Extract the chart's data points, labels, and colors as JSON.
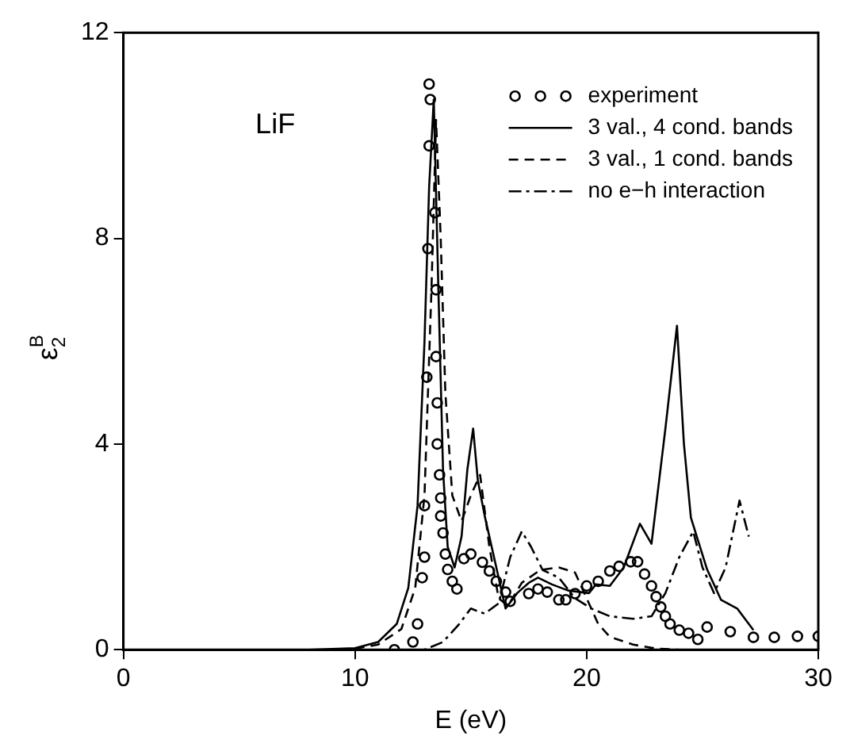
{
  "chart_data": {
    "type": "line",
    "xlabel": "E (eV)",
    "ylabel": "ε$_{2}$$^{B}$",
    "annotations": [
      "LiF"
    ],
    "xlim": [
      0,
      30
    ],
    "xticks": [
      0,
      10,
      20,
      30
    ],
    "ylim": [
      0,
      12
    ],
    "yticks": [
      0,
      4,
      8,
      12
    ],
    "grid": false,
    "legend": "top right",
    "series": [
      {
        "name": "experiment",
        "type": "scatter",
        "marker": "circle",
        "color": "#000000",
        "x": [
          11.7,
          12.5,
          12.7,
          12.9,
          13.0,
          13.0,
          13.1,
          13.15,
          13.2,
          13.25,
          13.2,
          13.45,
          13.5,
          13.5,
          13.55,
          13.55,
          13.65,
          13.7,
          13.7,
          13.8,
          13.9,
          14.0,
          14.2,
          14.4,
          14.7,
          15.0,
          15.5,
          15.8,
          16.1,
          16.5,
          16.7,
          17.5,
          17.9,
          18.3,
          18.8,
          19.1,
          19.5,
          20.0,
          20.5,
          21.0,
          21.4,
          21.9,
          22.2,
          22.5,
          22.8,
          23.0,
          23.2,
          23.4,
          23.6,
          24.0,
          24.4,
          24.8,
          25.2,
          26.2,
          27.2,
          28.1,
          29.1,
          30.0
        ],
        "values": [
          0.0,
          0.15,
          0.5,
          1.4,
          1.8,
          2.8,
          5.3,
          7.8,
          9.8,
          10.7,
          11.0,
          8.5,
          7.0,
          5.7,
          4.8,
          4.0,
          3.4,
          2.95,
          2.6,
          2.27,
          1.86,
          1.56,
          1.33,
          1.18,
          1.77,
          1.86,
          1.7,
          1.53,
          1.33,
          1.12,
          0.94,
          1.09,
          1.18,
          1.12,
          0.97,
          0.97,
          1.09,
          1.24,
          1.33,
          1.53,
          1.62,
          1.71,
          1.71,
          1.47,
          1.24,
          1.03,
          0.83,
          0.65,
          0.5,
          0.38,
          0.32,
          0.2,
          0.44,
          0.35,
          0.24,
          0.24,
          0.26,
          0.26
        ]
      },
      {
        "name": "3 val., 4 cond. bands",
        "marker": "none",
        "line_style": "solid",
        "color": "#000000",
        "x": [
          8,
          10,
          11,
          11.8,
          12.3,
          12.7,
          13.0,
          13.2,
          13.4,
          13.6,
          13.8,
          14.0,
          14.3,
          14.6,
          14.85,
          15.1,
          15.3,
          15.6,
          16.0,
          16.5,
          17.0,
          17.5,
          17.9,
          18.5,
          19.2,
          20.1,
          20.4,
          21.0,
          21.6,
          22.3,
          22.8,
          23.4,
          23.9,
          24.2,
          24.5,
          25.2,
          25.8,
          26.5,
          27.2
        ],
        "values": [
          0,
          0.03,
          0.15,
          0.5,
          1.2,
          2.8,
          6,
          9,
          10.7,
          7,
          3.5,
          2,
          1.6,
          2.2,
          3.5,
          4.3,
          3.3,
          2.6,
          1.8,
          0.8,
          1.1,
          1.3,
          1.4,
          1.27,
          1.15,
          1.1,
          1.27,
          1.24,
          1.6,
          2.45,
          2.06,
          4.3,
          6.3,
          4,
          2.57,
          1.56,
          0.97,
          0.8,
          0.38
        ]
      },
      {
        "name": "3 val., 1 cond. bands",
        "marker": "none",
        "line_style": "dashed",
        "color": "#000000",
        "x": [
          10,
          11,
          12,
          12.6,
          13.0,
          13.3,
          13.5,
          13.7,
          13.9,
          14.2,
          14.6,
          15.0,
          15.4,
          15.8,
          16.2,
          16.6,
          17.2,
          18.0,
          18.8,
          19.5,
          20.0,
          20.5,
          21.0,
          22,
          23,
          24
        ],
        "values": [
          0.02,
          0.1,
          0.4,
          1.2,
          3,
          7,
          10.3,
          8,
          5,
          3,
          2.5,
          3,
          3.4,
          2,
          1,
          0.85,
          1.3,
          1.55,
          1.6,
          1.5,
          1.0,
          0.5,
          0.25,
          0.1,
          0.02,
          0
        ]
      },
      {
        "name": "no e−h interaction",
        "marker": "none",
        "line_style": "dashdot",
        "color": "#000000",
        "x": [
          10,
          13,
          13.8,
          14.5,
          15.0,
          15.6,
          16.2,
          16.7,
          17.2,
          17.6,
          18.1,
          18.8,
          19.5,
          20.2,
          21.0,
          22.0,
          22.8,
          23.4,
          24.0,
          24.6,
          25.0,
          25.5,
          26.0,
          26.6,
          27.0
        ],
        "values": [
          0,
          0,
          0.15,
          0.5,
          0.8,
          0.7,
          0.9,
          1.8,
          2.3,
          2.0,
          1.55,
          1.4,
          1.0,
          0.8,
          0.65,
          0.6,
          0.65,
          1.1,
          1.8,
          2.3,
          1.6,
          1.1,
          1.6,
          2.9,
          2.2
        ]
      }
    ]
  }
}
